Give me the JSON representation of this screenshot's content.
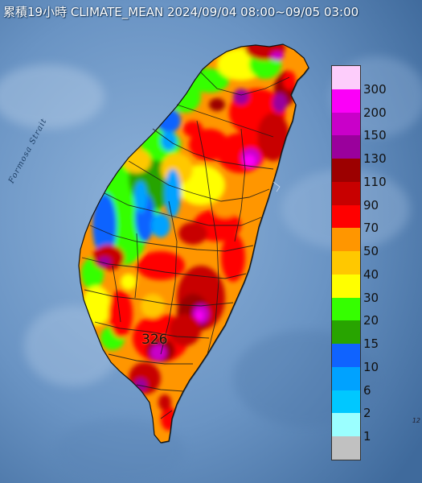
{
  "title": "累積19小時 CLIMATE_MEAN 2024/09/04 08:00~09/05 03:00",
  "strait_label": "Formosa Strait",
  "max_value_label": "326",
  "edge_mark": "12",
  "legend": {
    "items": [
      {
        "label": "300",
        "color": "#fdcdfb"
      },
      {
        "label": "200",
        "color": "#fb00f8"
      },
      {
        "label": "150",
        "color": "#c900c9"
      },
      {
        "label": "130",
        "color": "#9a009c"
      },
      {
        "label": "110",
        "color": "#9c0000"
      },
      {
        "label": "90",
        "color": "#c80000"
      },
      {
        "label": "70",
        "color": "#ff0000"
      },
      {
        "label": "50",
        "color": "#ff9600"
      },
      {
        "label": "40",
        "color": "#ffc800"
      },
      {
        "label": "30",
        "color": "#ffff00"
      },
      {
        "label": "20",
        "color": "#35ff00"
      },
      {
        "label": "15",
        "color": "#28a400"
      },
      {
        "label": "10",
        "color": "#0f63ff"
      },
      {
        "label": "6",
        "color": "#00a2ff"
      },
      {
        "label": "2",
        "color": "#00c8ff"
      },
      {
        "label": "1",
        "color": "#9bffff"
      },
      {
        "label": "",
        "color": "#c1c1c1"
      }
    ]
  },
  "colors": {
    "sea_dark": "#2f5b8c",
    "sea_light": "#6e98c6",
    "county_boundary": "#1a1a1a"
  }
}
